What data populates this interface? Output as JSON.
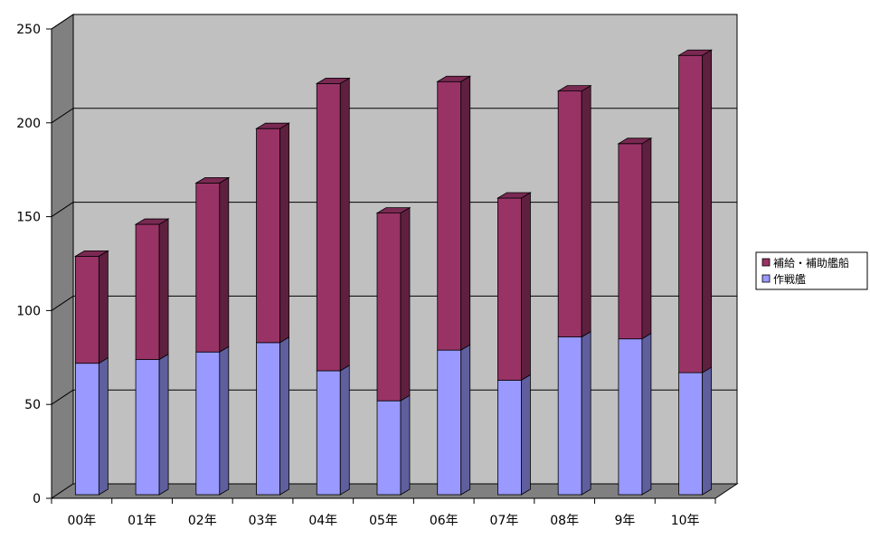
{
  "chart_data": {
    "type": "bar",
    "stacked": true,
    "three_d": true,
    "categories": [
      "00年",
      "01年",
      "02年",
      "03年",
      "04年",
      "05年",
      "06年",
      "07年",
      "08年",
      "9年",
      "10年"
    ],
    "series": [
      {
        "name": "作戦艦",
        "values": [
          70,
          72,
          76,
          81,
          66,
          50,
          77,
          61,
          84,
          83,
          65
        ],
        "color": "#9999FF"
      },
      {
        "name": "補給・補助艦船",
        "values": [
          57,
          72,
          90,
          114,
          153,
          100,
          143,
          97,
          131,
          104,
          169
        ],
        "color": "#993366"
      }
    ],
    "ylim": [
      0,
      250
    ],
    "yticks": [
      "0",
      "50",
      "100",
      "150",
      "200",
      "250"
    ],
    "grid": true,
    "legend_position": "right",
    "wall_color": "#C0C0C0",
    "floor_color": "#808080"
  }
}
